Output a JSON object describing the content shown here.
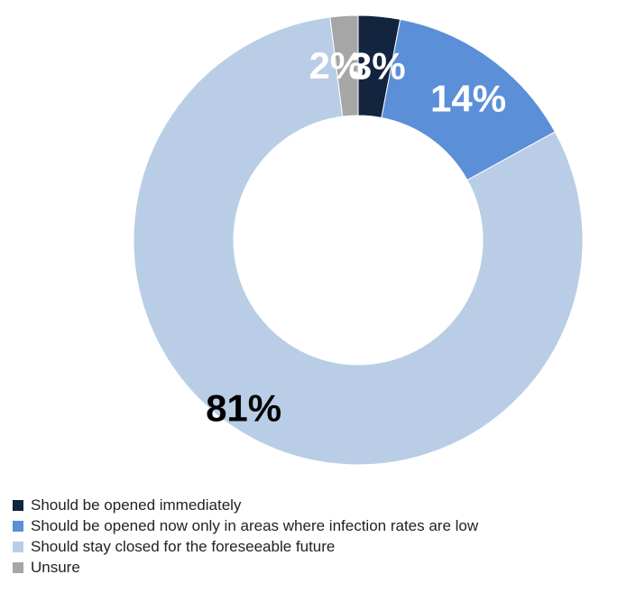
{
  "chart_data": {
    "type": "pie",
    "style": "donut",
    "categories": [
      "Should be opened immediately",
      "Should be opened now only in areas where infection rates are low",
      "Should stay closed for the foreseeable future",
      "Unsure"
    ],
    "values": [
      3,
      14,
      81,
      2
    ],
    "labels": [
      "3%",
      "14%",
      "81%",
      "2%"
    ],
    "colors": [
      "#13243f",
      "#5b8fd8",
      "#b9cde6",
      "#a6a6a6"
    ],
    "label_colors": [
      "#ffffff",
      "#ffffff",
      "#000000",
      "#ffffff"
    ],
    "legend_position": "bottom-left"
  }
}
